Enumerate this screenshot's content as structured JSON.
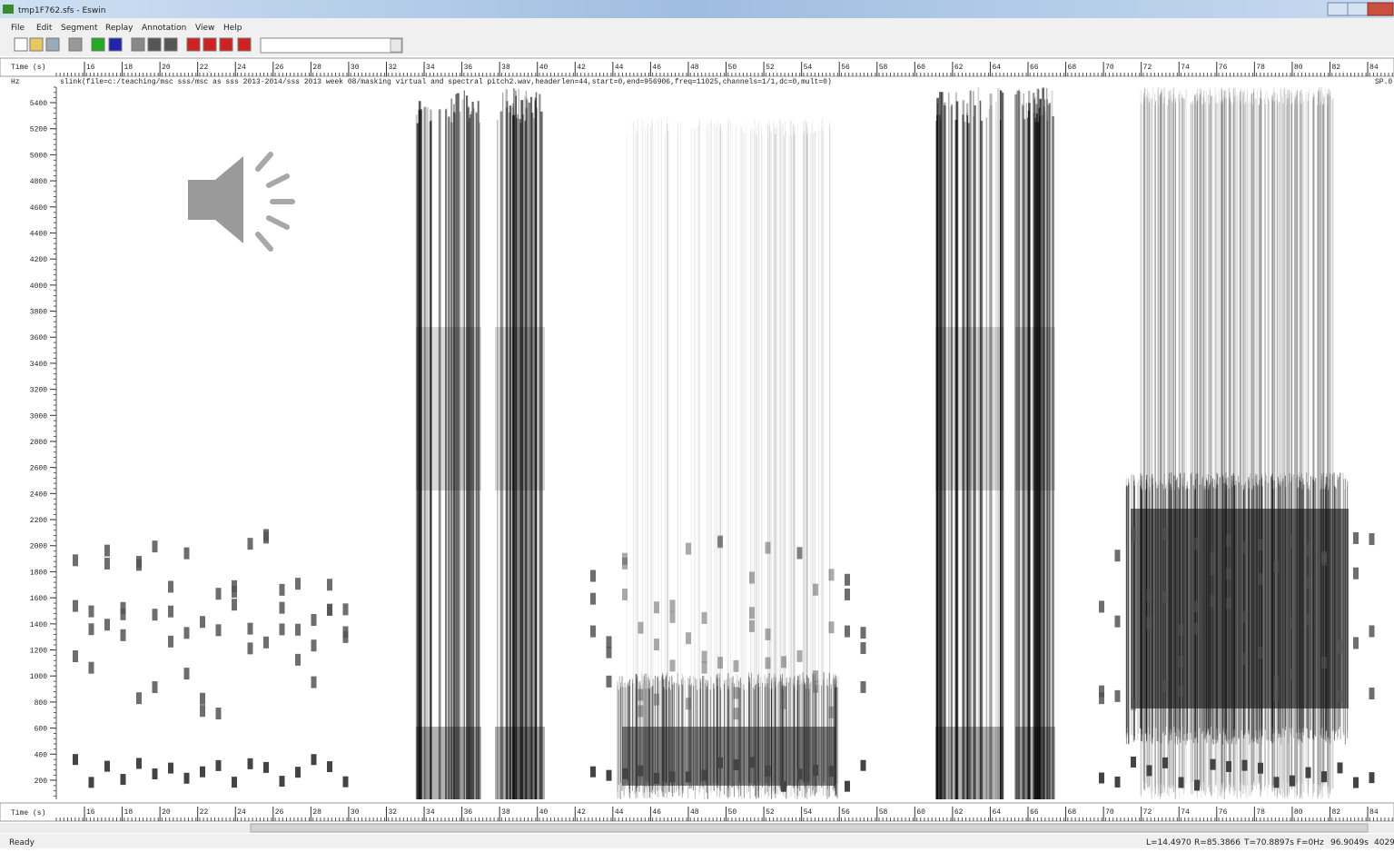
{
  "window": {
    "title": "tmp1F762.sfs - Eswin"
  },
  "menu": [
    "File",
    "Edit",
    "Segment",
    "Replay",
    "Annotation",
    "View",
    "Help"
  ],
  "time_axis": {
    "label": "Time (s)",
    "ticks": [
      "16",
      "18",
      "20",
      "22",
      "24",
      "26",
      "28",
      "30",
      "32",
      "34",
      "36",
      "38",
      "40",
      "42",
      "44",
      "46",
      "48",
      "50",
      "52",
      "54",
      "56",
      "58",
      "60",
      "62",
      "64",
      "66",
      "68",
      "70",
      "72",
      "74",
      "76",
      "78",
      "80",
      "82",
      "84"
    ]
  },
  "freq_axis": {
    "label": "Hz",
    "ticks": [
      "5400",
      "5200",
      "5000",
      "4800",
      "4600",
      "4400",
      "4200",
      "4000",
      "3800",
      "3600",
      "3400",
      "3200",
      "3000",
      "2800",
      "2600",
      "2400",
      "2200",
      "2000",
      "1800",
      "1600",
      "1400",
      "1200",
      "1000",
      "800",
      "600",
      "400",
      "200"
    ]
  },
  "info_line": "slink(file=c:/teaching/msc sss/msc as sss 2013-2014/sss 2013 week 08/masking virtual and spectral pitch2.wav,headerlen=44,start=0,end=956906,freq=11025,channels=1/1,dc=0,mult=0)",
  "item_label": "SP.0",
  "status": {
    "ready": "Ready",
    "left": "L=14.4970",
    "right": "R=85.3866",
    "cursor": "T=70.8897s F=0Hz",
    "total": "96.9049s",
    "extra": "4029"
  }
}
